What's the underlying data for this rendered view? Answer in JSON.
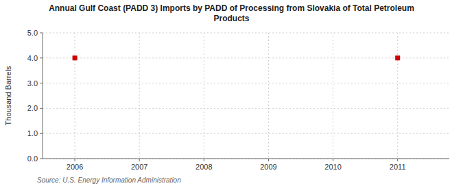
{
  "chart_data": {
    "type": "scatter",
    "title": "Annual Gulf Coast (PADD 3) Imports by PADD of Processing from Slovakia of Total Petroleum\nProducts",
    "ylabel": "Thousand Barrels",
    "source": "Source: U.S. Energy Information Administration",
    "x": [
      2006,
      2011
    ],
    "values": [
      4,
      4
    ],
    "color": "#cc0000",
    "marker": "square",
    "xlim": [
      2005.5,
      2011.8
    ],
    "ylim": [
      0.0,
      5.0
    ],
    "xticks": [
      2006,
      2007,
      2008,
      2009,
      2010,
      2011
    ],
    "yticks": [
      {
        "value": 0.0,
        "label": "0.0"
      },
      {
        "value": 1.0,
        "label": "1.0"
      },
      {
        "value": 2.0,
        "label": "2.0"
      },
      {
        "value": 3.0,
        "label": "3.0"
      },
      {
        "value": 4.0,
        "label": "4.0"
      },
      {
        "value": 5.0,
        "label": "5.0"
      }
    ],
    "grid": true
  }
}
